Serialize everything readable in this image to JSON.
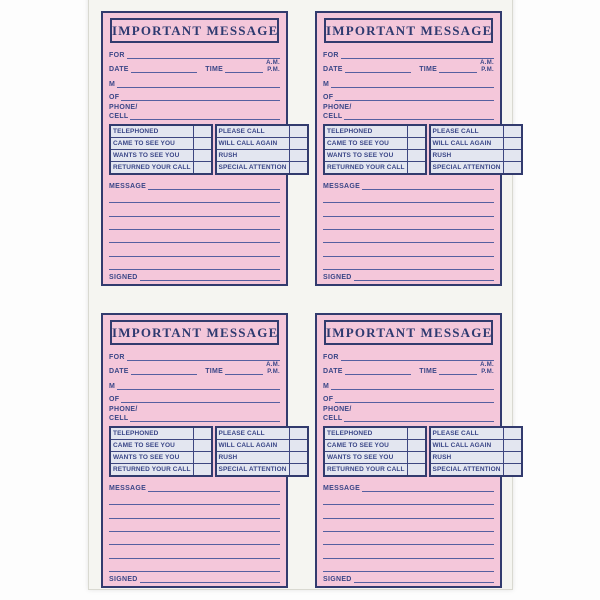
{
  "sheet": {
    "card_count": 4,
    "layout": "2x2 grid of identical message forms"
  },
  "colors": {
    "card_pink": "#f4c7da",
    "ink_navy": "#3a4687",
    "border_navy": "#323b6e",
    "table_cell_blue": "#e3e6f0",
    "rule_blue": "#555fa0",
    "sheet_white": "#f5f5f1"
  },
  "card": {
    "title": "IMPORTANT MESSAGE",
    "fields": {
      "for_label": "FOR",
      "date_label": "DATE",
      "time_label": "TIME",
      "am_label": "A.M.",
      "pm_label": "P.M.",
      "m_label": "M",
      "of_label": "OF",
      "phone_label": "PHONE/",
      "cell_label": "CELL",
      "message_label": "MESSAGE",
      "signed_label": "SIGNED"
    },
    "checklist": {
      "rows": [
        {
          "left": "TELEPHONED",
          "right": "PLEASE CALL"
        },
        {
          "left": "CAME TO SEE YOU",
          "right": "WILL CALL AGAIN"
        },
        {
          "left": "WANTS TO SEE YOU",
          "right": "RUSH"
        },
        {
          "left": "RETURNED YOUR CALL",
          "right": "SPECIAL ATTENTION"
        }
      ]
    },
    "message_line_count": 6
  }
}
